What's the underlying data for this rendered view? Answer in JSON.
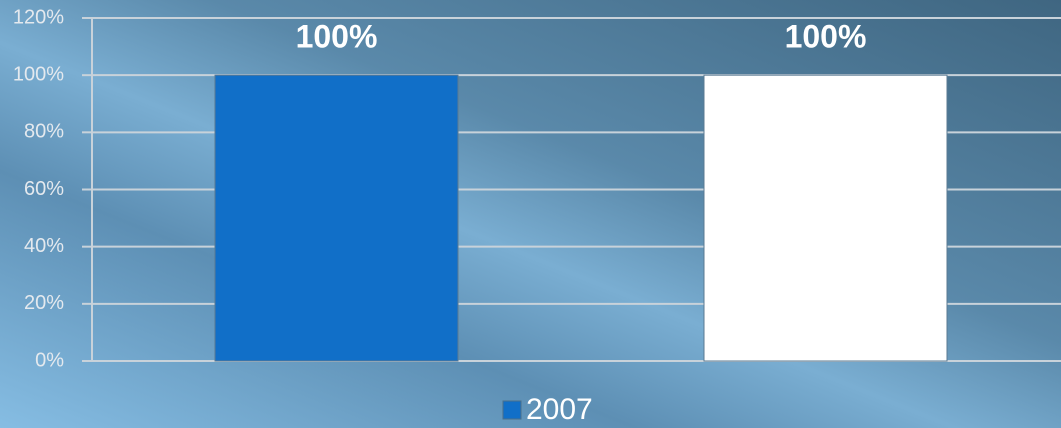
{
  "chart_data": {
    "type": "bar",
    "categories": [
      null,
      null
    ],
    "series": [
      {
        "name": "2007",
        "color": "#116fc8",
        "values": [
          100,
          100
        ],
        "value_labels": [
          "100%",
          "100%"
        ],
        "colors": [
          "#116fc8",
          "#ffffff"
        ]
      }
    ],
    "ylim": [
      0,
      120
    ],
    "yticks": [
      {
        "value": 0,
        "label": "0%"
      },
      {
        "value": 20,
        "label": "20%"
      },
      {
        "value": 40,
        "label": "40%"
      },
      {
        "value": 60,
        "label": "60%"
      },
      {
        "value": 80,
        "label": "80%"
      },
      {
        "value": 100,
        "label": "100%"
      },
      {
        "value": 120,
        "label": "120%"
      }
    ],
    "grid": true,
    "legend": "bottom"
  }
}
